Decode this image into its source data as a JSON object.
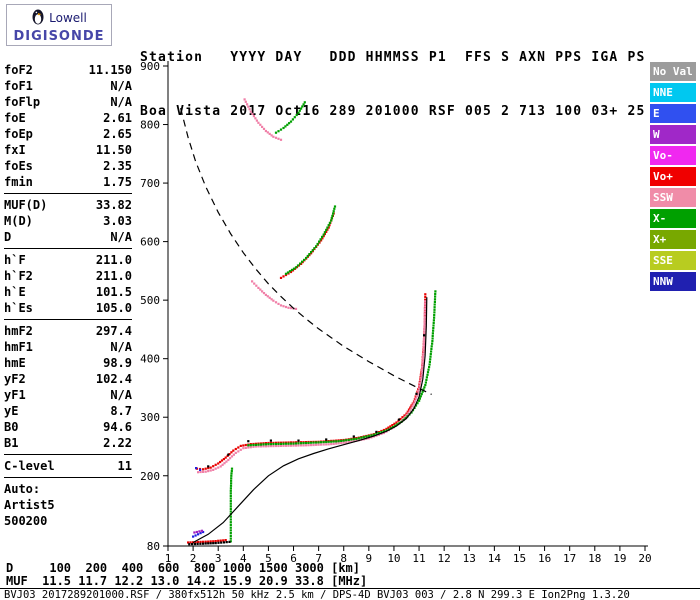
{
  "logo": {
    "line1": "Lowell",
    "line2": "DIGISONDE"
  },
  "header": {
    "line1": "Station   YYYY DAY   DDD HHMMSS P1  FFS S AXN PPS IGA PS",
    "line2": "Boa Vista 2017 Oct16 289 201000 RSF 005 2 713 100 03+ 25"
  },
  "parameters": {
    "groups": [
      {
        "rows": [
          {
            "label": "foF2",
            "value": "11.150"
          },
          {
            "label": "foF1",
            "value": "N/A"
          },
          {
            "label": "foFlp",
            "value": "N/A"
          },
          {
            "label": "foE",
            "value": "2.61"
          },
          {
            "label": "foEp",
            "value": "2.65"
          },
          {
            "label": "fxI",
            "value": "11.50"
          },
          {
            "label": "foEs",
            "value": "2.35"
          },
          {
            "label": "fmin",
            "value": "1.75"
          }
        ]
      },
      {
        "rows": [
          {
            "label": "MUF(D)",
            "value": "33.82"
          },
          {
            "label": "M(D)",
            "value": "3.03"
          },
          {
            "label": "D",
            "value": "N/A"
          }
        ]
      },
      {
        "rows": [
          {
            "label": "h`F",
            "value": "211.0"
          },
          {
            "label": "h`F2",
            "value": "211.0"
          },
          {
            "label": "h`E",
            "value": "101.5"
          },
          {
            "label": "h`Es",
            "value": "105.0"
          }
        ]
      },
      {
        "rows": [
          {
            "label": "hmF2",
            "value": "297.4"
          },
          {
            "label": "hmF1",
            "value": "N/A"
          },
          {
            "label": "hmE",
            "value": "98.9"
          },
          {
            "label": "yF2",
            "value": "102.4"
          },
          {
            "label": "yF1",
            "value": "N/A"
          },
          {
            "label": "yE",
            "value": "8.7"
          },
          {
            "label": "B0",
            "value": "94.6"
          },
          {
            "label": "B1",
            "value": "2.22"
          }
        ]
      },
      {
        "rows": [
          {
            "label": "C-level",
            "value": "11"
          }
        ]
      },
      {
        "rows": [
          {
            "label": "Auto:",
            "value": ""
          },
          {
            "label": "Artist5",
            "value": ""
          },
          {
            "label": "500200",
            "value": ""
          }
        ]
      }
    ]
  },
  "legend": {
    "items": [
      {
        "label": "No Val",
        "color": "#9C9C9C"
      },
      {
        "label": "NNE",
        "color": "#00C8F0"
      },
      {
        "label": "E",
        "color": "#3050F0"
      },
      {
        "label": "W",
        "color": "#A028C8"
      },
      {
        "label": "Vo-",
        "color": "#F028F0"
      },
      {
        "label": "Vo+",
        "color": "#F00000"
      },
      {
        "label": "SSW",
        "color": "#F08CA8"
      },
      {
        "label": "X-",
        "color": "#00A000"
      },
      {
        "label": "X+",
        "color": "#78A800"
      },
      {
        "label": "SSE",
        "color": "#B8CC20"
      },
      {
        "label": "NNW",
        "color": "#2020B0"
      }
    ]
  },
  "distance_table": {
    "d_label": "D",
    "d_values": [
      "100",
      "200",
      "400",
      "600",
      "800",
      "1000",
      "1500",
      "3000"
    ],
    "d_unit": "[km]",
    "muf_label": "MUF",
    "muf_values": [
      "11.5",
      "11.7",
      "12.2",
      "13.0",
      "14.2",
      "15.9",
      "20.9",
      "33.8"
    ],
    "muf_unit": "[MHz]"
  },
  "status_bar": {
    "text": "BVJ03_2017289201000.RSF / 380fx512h 50 kHz 2.5 km / DPS-4D BVJ03 003 / 2.8 N 299.3 E Ion2Png 1.3.20"
  },
  "chart_data": {
    "type": "scatter",
    "x_unit": "MHz",
    "y_unit": "km",
    "xlim": [
      1,
      20
    ],
    "ylim": [
      80,
      900
    ],
    "x_ticks": [
      1,
      2,
      3,
      4,
      5,
      6,
      7,
      8,
      9,
      10,
      11,
      12,
      13,
      14,
      15,
      16,
      17,
      18,
      19,
      20
    ],
    "y_ticks": [
      900,
      800,
      700,
      600,
      500,
      400,
      300,
      200,
      80
    ],
    "grid": false,
    "legend_position": "right-outside",
    "series": [
      {
        "name": "F trace O-mode",
        "color": "#E80000",
        "type": "points",
        "dense": true,
        "points": [
          [
            2.15,
            212
          ],
          [
            2.4,
            211
          ],
          [
            2.7,
            214
          ],
          [
            3.0,
            221
          ],
          [
            3.3,
            231
          ],
          [
            3.6,
            243
          ],
          [
            3.9,
            251
          ],
          [
            4.3,
            254
          ],
          [
            5.0,
            256
          ],
          [
            6.0,
            257
          ],
          [
            7.0,
            258
          ],
          [
            8.0,
            261
          ],
          [
            8.6,
            265
          ],
          [
            9.2,
            271
          ],
          [
            9.7,
            280
          ],
          [
            10.1,
            291
          ],
          [
            10.5,
            306
          ],
          [
            10.8,
            327
          ],
          [
            11.0,
            352
          ],
          [
            11.12,
            385
          ],
          [
            11.19,
            425
          ],
          [
            11.23,
            468
          ],
          [
            11.25,
            510
          ]
        ]
      },
      {
        "name": "F trace fringe",
        "color": "#F080A8",
        "type": "points",
        "dense": true,
        "points": [
          [
            2.2,
            206
          ],
          [
            2.5,
            207
          ],
          [
            2.8,
            210
          ],
          [
            3.1,
            216
          ],
          [
            3.4,
            227
          ],
          [
            3.7,
            239
          ],
          [
            4.0,
            247
          ],
          [
            4.5,
            250
          ],
          [
            5.5,
            251
          ],
          [
            6.5,
            252
          ],
          [
            7.5,
            254
          ],
          [
            8.3,
            258
          ],
          [
            9.0,
            264
          ],
          [
            9.6,
            273
          ],
          [
            10.0,
            283
          ],
          [
            10.4,
            297
          ],
          [
            10.7,
            315
          ],
          [
            10.95,
            340
          ],
          [
            11.1,
            372
          ],
          [
            11.18,
            412
          ],
          [
            11.22,
            455
          ],
          [
            11.24,
            498
          ]
        ]
      },
      {
        "name": "F trace X-mode",
        "color": "#00A000",
        "type": "points",
        "dense": true,
        "points": [
          [
            4.2,
            252
          ],
          [
            5.0,
            254
          ],
          [
            6.0,
            255
          ],
          [
            7.0,
            257
          ],
          [
            7.8,
            259
          ],
          [
            8.5,
            263
          ],
          [
            9.2,
            270
          ],
          [
            9.8,
            279
          ],
          [
            10.3,
            292
          ],
          [
            10.7,
            308
          ],
          [
            11.0,
            328
          ],
          [
            11.25,
            355
          ],
          [
            11.42,
            390
          ],
          [
            11.53,
            430
          ],
          [
            11.6,
            470
          ],
          [
            11.65,
            515
          ]
        ]
      },
      {
        "name": "E region vertical",
        "color": "#00A000",
        "type": "points",
        "dense": true,
        "points": [
          [
            3.5,
            88
          ],
          [
            3.5,
            130
          ],
          [
            3.5,
            170
          ],
          [
            3.52,
            200
          ],
          [
            3.55,
            212
          ]
        ]
      },
      {
        "name": "Second order O",
        "color": "#E80000",
        "type": "points",
        "dense": true,
        "points": [
          [
            5.5,
            538
          ],
          [
            5.9,
            548
          ],
          [
            6.3,
            562
          ],
          [
            6.7,
            580
          ],
          [
            7.1,
            602
          ],
          [
            7.4,
            624
          ],
          [
            7.6,
            648
          ]
        ]
      },
      {
        "name": "Second order X",
        "color": "#00A000",
        "type": "points",
        "dense": true,
        "points": [
          [
            5.7,
            545
          ],
          [
            6.1,
            556
          ],
          [
            6.5,
            572
          ],
          [
            6.9,
            592
          ],
          [
            7.2,
            612
          ],
          [
            7.5,
            636
          ],
          [
            7.65,
            660
          ]
        ]
      },
      {
        "name": "Spread descending",
        "color": "#F080A8",
        "type": "points",
        "dense": true,
        "points": [
          [
            4.35,
            532
          ],
          [
            4.6,
            521
          ],
          [
            4.9,
            509
          ],
          [
            5.2,
            499
          ],
          [
            5.5,
            491
          ],
          [
            5.8,
            487
          ],
          [
            6.1,
            485
          ]
        ]
      },
      {
        "name": "Third order pink",
        "color": "#F080A8",
        "type": "points",
        "dense": true,
        "points": [
          [
            4.05,
            843
          ],
          [
            4.3,
            822
          ],
          [
            4.6,
            803
          ],
          [
            4.9,
            789
          ],
          [
            5.2,
            779
          ],
          [
            5.5,
            774
          ]
        ]
      },
      {
        "name": "Third order green",
        "color": "#00A000",
        "type": "points",
        "dense": true,
        "points": [
          [
            5.3,
            786
          ],
          [
            5.6,
            794
          ],
          [
            5.9,
            805
          ],
          [
            6.2,
            820
          ],
          [
            6.45,
            838
          ]
        ]
      },
      {
        "name": "Es red",
        "color": "#E80000",
        "type": "points",
        "dense": true,
        "points": [
          [
            1.8,
            86
          ],
          [
            2.3,
            87
          ],
          [
            2.8,
            88
          ],
          [
            3.3,
            90
          ]
        ]
      },
      {
        "name": "Es black",
        "color": "#000000",
        "type": "points",
        "dense": true,
        "points": [
          [
            1.85,
            83
          ],
          [
            2.4,
            84
          ],
          [
            2.9,
            85
          ],
          [
            3.45,
            87
          ]
        ]
      },
      {
        "name": "Es blue",
        "color": "#2020E0",
        "type": "points",
        "dense": true,
        "points": [
          [
            2.0,
            96
          ],
          [
            2.2,
            100
          ],
          [
            2.4,
            104
          ]
        ]
      },
      {
        "name": "Es purple",
        "color": "#A020C0",
        "type": "points",
        "dense": true,
        "points": [
          [
            2.05,
            103
          ],
          [
            2.35,
            106
          ]
        ]
      },
      {
        "name": "F start blue",
        "color": "#2020E0",
        "type": "points",
        "dense": false,
        "points": [
          [
            2.12,
            213
          ],
          [
            2.28,
            210
          ]
        ]
      },
      {
        "name": "Trace black specks",
        "color": "#000000",
        "type": "points",
        "dense": false,
        "points": [
          [
            2.6,
            216
          ],
          [
            3.4,
            236
          ],
          [
            4.2,
            259
          ],
          [
            5.1,
            260
          ],
          [
            6.2,
            260
          ],
          [
            7.3,
            262
          ],
          [
            8.4,
            267
          ],
          [
            9.3,
            275
          ],
          [
            10.2,
            296
          ],
          [
            10.9,
            340
          ],
          [
            11.2,
            440
          ]
        ]
      },
      {
        "name": "True height profile",
        "color": "#000000",
        "type": "line",
        "points": [
          [
            2.0,
            86
          ],
          [
            2.6,
            100
          ],
          [
            3.2,
            120
          ],
          [
            3.8,
            148
          ],
          [
            4.4,
            176
          ],
          [
            5.0,
            200
          ],
          [
            5.6,
            217
          ],
          [
            6.2,
            229
          ],
          [
            6.8,
            238
          ],
          [
            7.4,
            246
          ],
          [
            8.0,
            253
          ],
          [
            8.6,
            260
          ],
          [
            9.2,
            268
          ],
          [
            9.7,
            276
          ],
          [
            10.1,
            285
          ],
          [
            10.5,
            298
          ],
          [
            10.8,
            315
          ],
          [
            11.0,
            335
          ],
          [
            11.15,
            365
          ],
          [
            11.24,
            405
          ],
          [
            11.29,
            455
          ],
          [
            11.31,
            505
          ]
        ]
      },
      {
        "name": "MUF transmission curve",
        "color": "#000000",
        "type": "dashed",
        "points": [
          [
            1.5,
            828
          ],
          [
            1.8,
            778
          ],
          [
            2.1,
            737
          ],
          [
            2.5,
            694
          ],
          [
            3.0,
            650
          ],
          [
            3.5,
            613
          ],
          [
            4.0,
            581
          ],
          [
            4.5,
            553
          ],
          [
            5.0,
            528
          ],
          [
            5.5,
            506
          ],
          [
            6.0,
            486
          ],
          [
            6.5,
            468
          ],
          [
            7.0,
            451
          ],
          [
            7.5,
            436
          ],
          [
            8.0,
            421
          ],
          [
            8.5,
            408
          ],
          [
            9.0,
            395
          ],
          [
            9.5,
            383
          ],
          [
            10.0,
            371
          ],
          [
            10.5,
            360
          ],
          [
            11.0,
            349
          ],
          [
            11.5,
            339
          ]
        ]
      }
    ]
  }
}
